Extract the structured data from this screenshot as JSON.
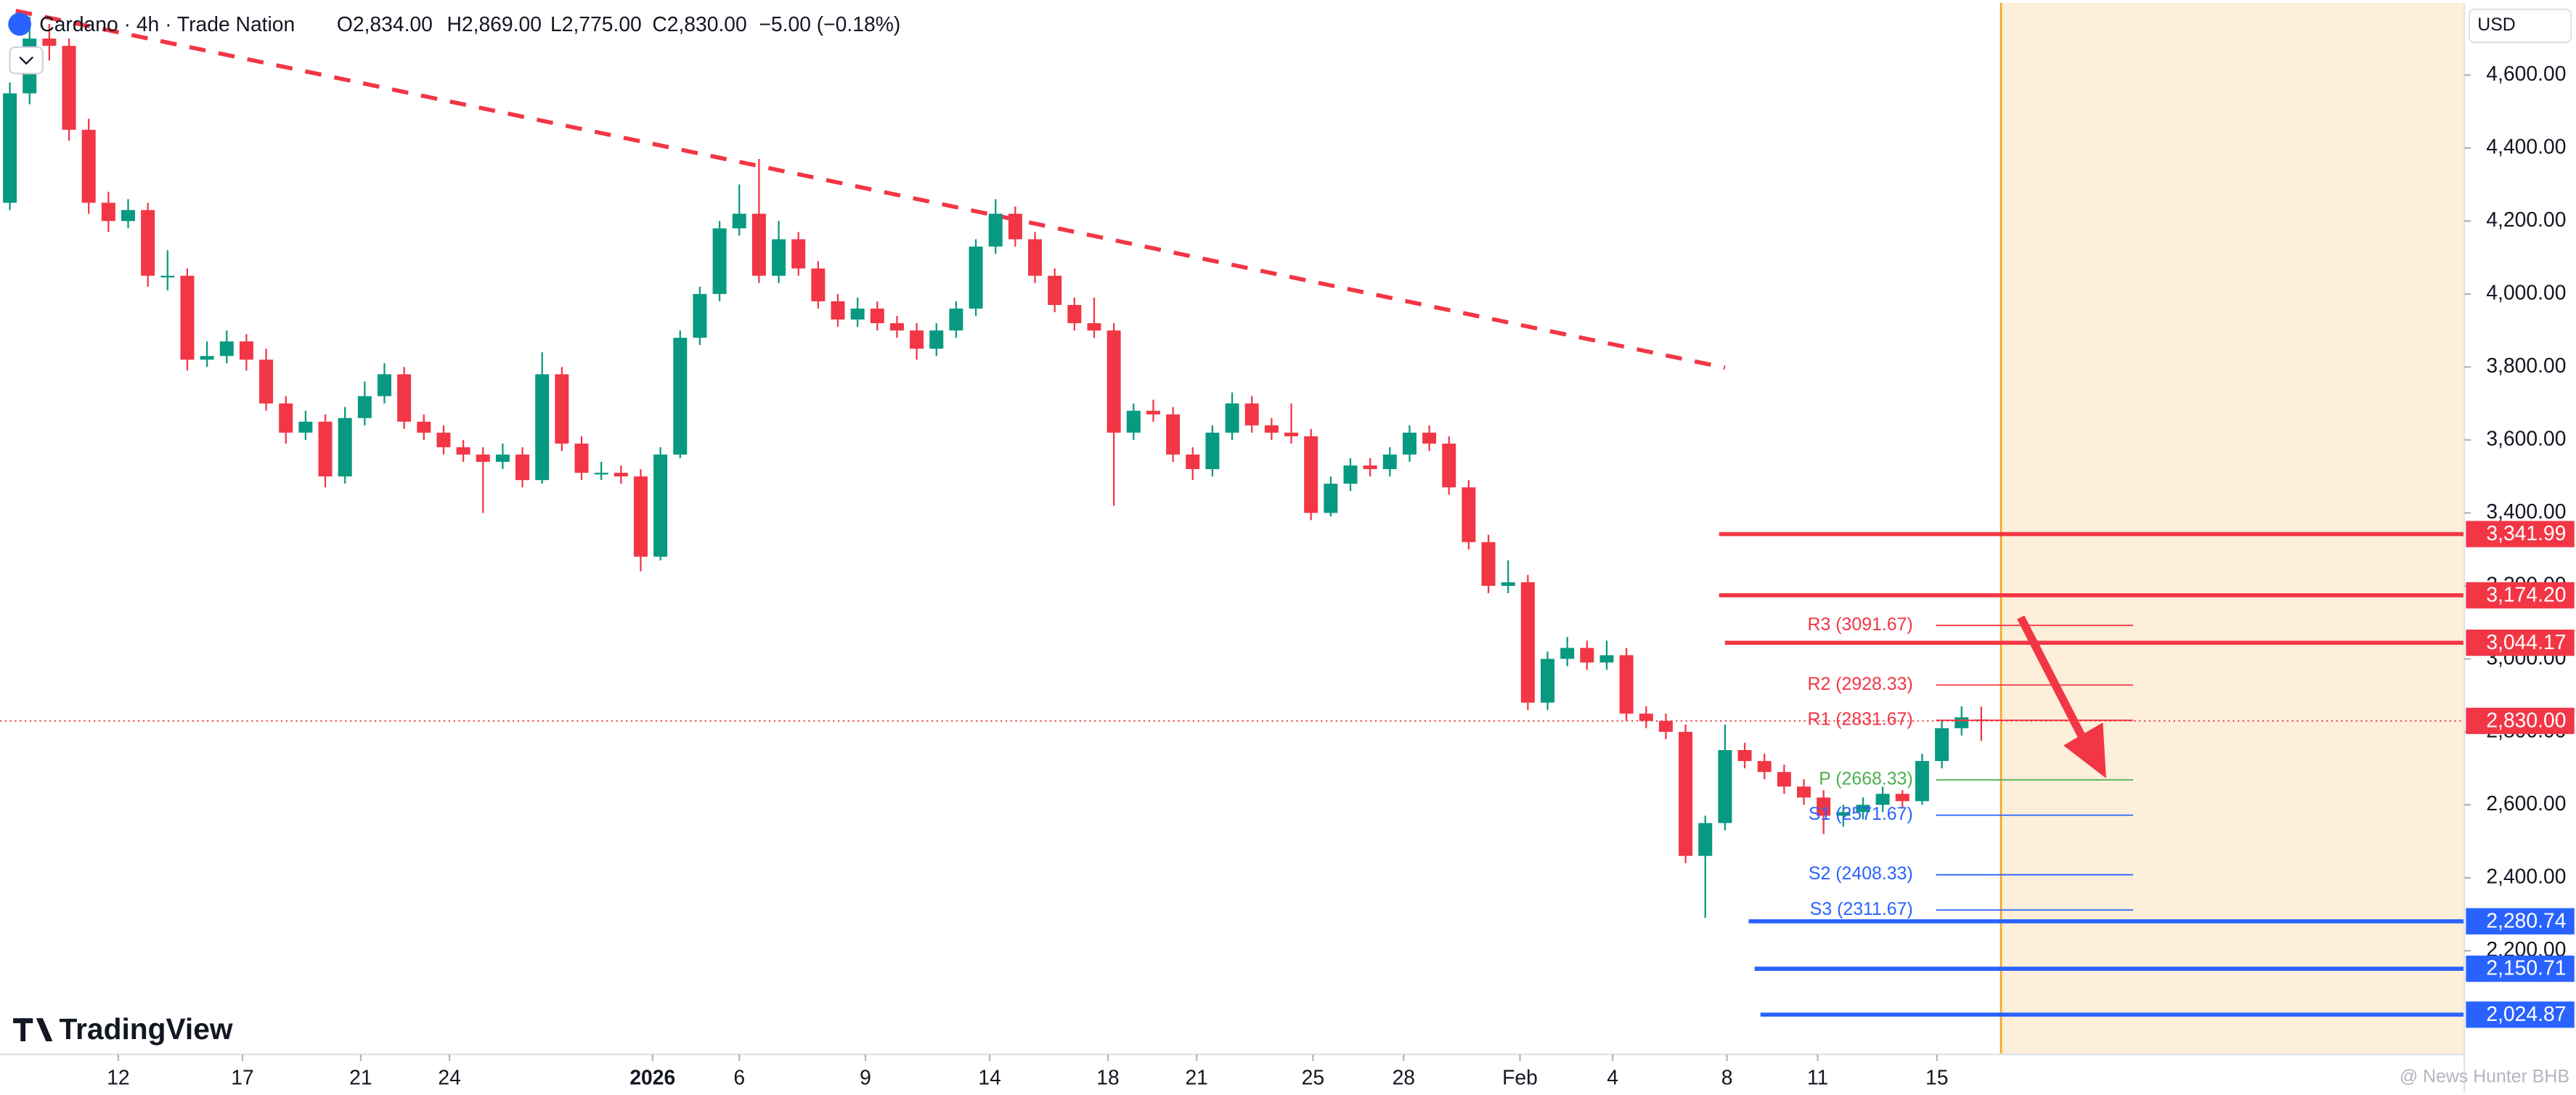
{
  "header": {
    "symbol": "Cardano · 4h · Trade Nation",
    "ohlc": [
      "O2,834.00",
      "H2,869.00",
      "L2,775.00",
      "C2,830.00",
      "−5.00 (−0.18%)"
    ],
    "currency": "USD",
    "brand": "TradingView",
    "watermark": "@ News Hunter BHB"
  },
  "chart_data": {
    "type": "candlestick",
    "up_color": "#089981",
    "down_color": "#f23645",
    "xlim": [
      -0.5,
      124.5
    ],
    "ylim": [
      1916,
      4798
    ],
    "xticks": [
      {
        "value": 5.5,
        "label": "12"
      },
      {
        "value": 11.8,
        "label": "17"
      },
      {
        "value": 17.8,
        "label": "21"
      },
      {
        "value": 22.3,
        "label": "24"
      },
      {
        "value": 32.6,
        "label": "2026"
      },
      {
        "value": 37,
        "label": "6"
      },
      {
        "value": 43.4,
        "label": "9"
      },
      {
        "value": 49.7,
        "label": "14"
      },
      {
        "value": 55.7,
        "label": "18"
      },
      {
        "value": 60.2,
        "label": "21"
      },
      {
        "value": 66.1,
        "label": "25"
      },
      {
        "value": 70.7,
        "label": "28"
      },
      {
        "value": 76.6,
        "label": "Feb"
      },
      {
        "value": 81.3,
        "label": "4"
      },
      {
        "value": 87.1,
        "label": "8"
      },
      {
        "value": 91.7,
        "label": "11"
      },
      {
        "value": 97.75,
        "label": "15"
      }
    ],
    "yticks": [
      {
        "value": 4600,
        "label": "4,600.00"
      },
      {
        "value": 4400,
        "label": "4,400.00"
      },
      {
        "value": 4200,
        "label": "4,200.00"
      },
      {
        "value": 4000,
        "label": "4,000.00"
      },
      {
        "value": 3800,
        "label": "3,800.00"
      },
      {
        "value": 3600,
        "label": "3,600.00"
      },
      {
        "value": 3400,
        "label": "3,400.00"
      },
      {
        "value": 3200,
        "label": "3,200.00"
      },
      {
        "value": 3000,
        "label": "3,000.00"
      },
      {
        "value": 2800,
        "label": "2,800.00"
      },
      {
        "value": 2600,
        "label": "2,600.00"
      },
      {
        "value": 2400,
        "label": "2,400.00"
      },
      {
        "value": 2200,
        "label": "2,200.00"
      }
    ],
    "candles": [
      [
        4250,
        4580,
        4230,
        4550
      ],
      [
        4550,
        4760,
        4520,
        4700
      ],
      [
        4700,
        4740,
        4640,
        4680
      ],
      [
        4680,
        4700,
        4420,
        4450
      ],
      [
        4450,
        4480,
        4220,
        4250
      ],
      [
        4250,
        4280,
        4170,
        4200
      ],
      [
        4200,
        4260,
        4180,
        4230
      ],
      [
        4230,
        4250,
        4020,
        4050
      ],
      [
        4050,
        4120,
        4010,
        4050
      ],
      [
        4050,
        4070,
        3790,
        3820
      ],
      [
        3820,
        3870,
        3800,
        3830
      ],
      [
        3830,
        3900,
        3810,
        3870
      ],
      [
        3870,
        3890,
        3790,
        3820
      ],
      [
        3820,
        3850,
        3680,
        3700
      ],
      [
        3700,
        3720,
        3590,
        3620
      ],
      [
        3620,
        3680,
        3600,
        3650
      ],
      [
        3650,
        3670,
        3470,
        3500
      ],
      [
        3500,
        3690,
        3480,
        3660
      ],
      [
        3660,
        3760,
        3640,
        3720
      ],
      [
        3720,
        3810,
        3700,
        3780
      ],
      [
        3780,
        3800,
        3630,
        3650
      ],
      [
        3650,
        3670,
        3600,
        3620
      ],
      [
        3620,
        3640,
        3560,
        3580
      ],
      [
        3580,
        3600,
        3540,
        3560
      ],
      [
        3560,
        3580,
        3400,
        3540
      ],
      [
        3540,
        3590,
        3520,
        3560
      ],
      [
        3560,
        3580,
        3470,
        3490
      ],
      [
        3490,
        3840,
        3480,
        3780
      ],
      [
        3780,
        3800,
        3570,
        3590
      ],
      [
        3590,
        3610,
        3490,
        3510
      ],
      [
        3510,
        3540,
        3490,
        3510
      ],
      [
        3510,
        3530,
        3480,
        3500
      ],
      [
        3500,
        3520,
        3240,
        3280
      ],
      [
        3280,
        3580,
        3270,
        3560
      ],
      [
        3560,
        3900,
        3550,
        3880
      ],
      [
        3880,
        4020,
        3860,
        4000
      ],
      [
        4000,
        4200,
        3980,
        4180
      ],
      [
        4180,
        4300,
        4160,
        4220
      ],
      [
        4220,
        4370,
        4030,
        4050
      ],
      [
        4050,
        4200,
        4030,
        4150
      ],
      [
        4150,
        4170,
        4050,
        4070
      ],
      [
        4070,
        4090,
        3960,
        3980
      ],
      [
        3980,
        4000,
        3910,
        3930
      ],
      [
        3930,
        3990,
        3910,
        3960
      ],
      [
        3960,
        3980,
        3900,
        3920
      ],
      [
        3920,
        3940,
        3880,
        3900
      ],
      [
        3900,
        3920,
        3820,
        3850
      ],
      [
        3850,
        3920,
        3830,
        3900
      ],
      [
        3900,
        3980,
        3880,
        3960
      ],
      [
        3960,
        4150,
        3940,
        4130
      ],
      [
        4130,
        4260,
        4110,
        4220
      ],
      [
        4220,
        4240,
        4130,
        4150
      ],
      [
        4150,
        4170,
        4030,
        4050
      ],
      [
        4050,
        4070,
        3950,
        3970
      ],
      [
        3970,
        3990,
        3900,
        3920
      ],
      [
        3920,
        3990,
        3880,
        3900
      ],
      [
        3900,
        3920,
        3420,
        3620
      ],
      [
        3620,
        3700,
        3600,
        3680
      ],
      [
        3680,
        3710,
        3650,
        3670
      ],
      [
        3670,
        3690,
        3540,
        3560
      ],
      [
        3560,
        3580,
        3490,
        3520
      ],
      [
        3520,
        3640,
        3500,
        3620
      ],
      [
        3620,
        3730,
        3600,
        3700
      ],
      [
        3700,
        3720,
        3620,
        3640
      ],
      [
        3640,
        3660,
        3600,
        3620
      ],
      [
        3620,
        3700,
        3590,
        3610
      ],
      [
        3610,
        3630,
        3380,
        3400
      ],
      [
        3400,
        3500,
        3390,
        3480
      ],
      [
        3480,
        3550,
        3460,
        3530
      ],
      [
        3530,
        3550,
        3500,
        3520
      ],
      [
        3520,
        3580,
        3500,
        3560
      ],
      [
        3560,
        3640,
        3540,
        3620
      ],
      [
        3620,
        3640,
        3570,
        3590
      ],
      [
        3590,
        3610,
        3450,
        3470
      ],
      [
        3470,
        3490,
        3300,
        3320
      ],
      [
        3320,
        3340,
        3180,
        3200
      ],
      [
        3200,
        3270,
        3180,
        3210
      ],
      [
        3210,
        3230,
        2860,
        2880
      ],
      [
        2880,
        3020,
        2860,
        3000
      ],
      [
        3000,
        3060,
        2980,
        3030
      ],
      [
        3030,
        3050,
        2970,
        2990
      ],
      [
        2990,
        3050,
        2970,
        3010
      ],
      [
        3010,
        3030,
        2830,
        2850
      ],
      [
        2850,
        2870,
        2810,
        2830
      ],
      [
        2830,
        2850,
        2780,
        2800
      ],
      [
        2800,
        2820,
        2440,
        2460
      ],
      [
        2460,
        2570,
        2290,
        2550
      ],
      [
        2550,
        2820,
        2530,
        2750
      ],
      [
        2750,
        2770,
        2700,
        2720
      ],
      [
        2720,
        2740,
        2670,
        2690
      ],
      [
        2690,
        2710,
        2630,
        2650
      ],
      [
        2650,
        2670,
        2600,
        2620
      ],
      [
        2620,
        2640,
        2520,
        2570
      ],
      [
        2570,
        2600,
        2540,
        2580
      ],
      [
        2580,
        2620,
        2560,
        2600
      ],
      [
        2600,
        2650,
        2580,
        2630
      ],
      [
        2630,
        2640,
        2590,
        2610
      ],
      [
        2610,
        2740,
        2600,
        2720
      ],
      [
        2720,
        2830,
        2700,
        2810
      ],
      [
        2810,
        2870,
        2790,
        2840
      ],
      [
        2834,
        2869,
        2775,
        2830
      ]
    ],
    "last_price": {
      "value": 2830,
      "label": "2,830.00",
      "color": "#f23645"
    },
    "trendline": {
      "x": [
        0.3,
        87
      ],
      "y": [
        4776,
        3798
      ],
      "color": "#f23645"
    },
    "levels": [
      {
        "value": 3341.99,
        "label": "3,341.99",
        "color": "#f23645",
        "start": 86.7
      },
      {
        "value": 3174.2,
        "label": "3,174.20",
        "color": "#f23645",
        "start": 86.7
      },
      {
        "value": 3044.17,
        "label": "3,044.17",
        "color": "#f23645",
        "start": 87
      },
      {
        "value": 2280.74,
        "label": "2,280.74",
        "color": "#2962ff",
        "start": 88.2
      },
      {
        "value": 2150.71,
        "label": "2,150.71",
        "color": "#2962ff",
        "start": 88.5
      },
      {
        "value": 2024.87,
        "label": "2,024.87",
        "color": "#2962ff",
        "start": 88.8
      }
    ],
    "pivots": {
      "start": 97.7,
      "end": 107.7,
      "items": [
        {
          "label": "R3 (3091.67)",
          "value": 3091.67,
          "color": "#f23645"
        },
        {
          "label": "R2 (2928.33)",
          "value": 2928.33,
          "color": "#f23645"
        },
        {
          "label": "R1 (2831.67)",
          "value": 2831.67,
          "color": "#f23645"
        },
        {
          "label": "P (2668.33)",
          "value": 2668.33,
          "color": "#4caf50"
        },
        {
          "label": "S1 (2571.67)",
          "value": 2571.67,
          "color": "#2962ff"
        },
        {
          "label": "S2 (2408.33)",
          "value": 2408.33,
          "color": "#2962ff"
        },
        {
          "label": "S3 (2311.67)",
          "value": 2311.67,
          "color": "#2962ff"
        }
      ]
    }
  }
}
